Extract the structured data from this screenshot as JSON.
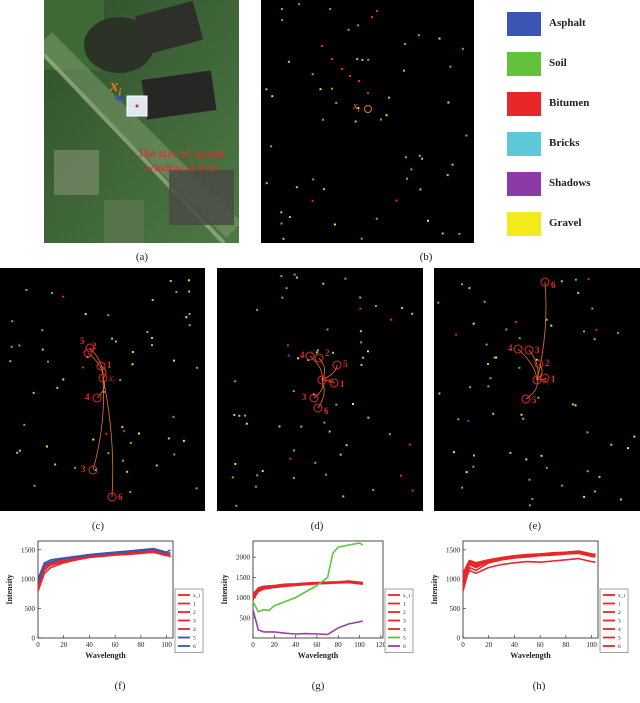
{
  "panel_labels": [
    "(a)",
    "(b)",
    "(c)",
    "(d)",
    "(e)",
    "(f)",
    "(g)",
    "(h)"
  ],
  "panel_a": {
    "target_label": "x",
    "target_sub": "i",
    "window_text_line1": "The size of spatial",
    "window_text_line2": "window is 9×9"
  },
  "legend": [
    {
      "label": "Asphalt",
      "color": "#3a55b4"
    },
    {
      "label": "Soil",
      "color": "#62c23c"
    },
    {
      "label": "Bitumen",
      "color": "#e8272a"
    },
    {
      "label": "Bricks",
      "color": "#5ec8d8"
    },
    {
      "label": "Shadows",
      "color": "#8b3aa6"
    },
    {
      "label": "Gravel",
      "color": "#f2ea1c"
    }
  ],
  "map_labels": {
    "b": {
      "target": "x",
      "sub": "i"
    },
    "c": {
      "target": "x",
      "sub": "i",
      "neighbors": [
        "2",
        "5",
        "1",
        "4",
        "3",
        "6"
      ]
    },
    "d": {
      "target": "x",
      "sub": "i",
      "neighbors": [
        "4",
        "2",
        "5",
        "1",
        "3",
        "6"
      ]
    },
    "e": {
      "target": "x",
      "sub": "i",
      "neighbors": [
        "4",
        "3",
        "2",
        "1",
        "5",
        "6"
      ]
    }
  },
  "chart_data": [
    {
      "type": "line",
      "panel": "(f)",
      "xlabel": "Wavelength",
      "ylabel": "Intensity",
      "xlim": [
        0,
        105
      ],
      "ylim": [
        0,
        1650
      ],
      "xticks": [
        0,
        20,
        40,
        60,
        80,
        100
      ],
      "yticks": [
        0,
        500,
        1000,
        1500
      ],
      "legend": [
        "x_i",
        "1",
        "2",
        "3",
        "4",
        "5",
        "6"
      ],
      "series": [
        {
          "name": "x_i",
          "color": "#e8272a",
          "x": [
            0,
            5,
            10,
            20,
            30,
            40,
            50,
            60,
            70,
            80,
            90,
            100,
            103
          ],
          "y": [
            900,
            1150,
            1250,
            1300,
            1350,
            1380,
            1400,
            1420,
            1430,
            1440,
            1460,
            1400,
            1420
          ]
        },
        {
          "name": "1",
          "color": "#e8272a",
          "x": [
            0,
            5,
            10,
            20,
            30,
            40,
            50,
            60,
            70,
            80,
            90,
            100,
            103
          ],
          "y": [
            800,
            1100,
            1200,
            1280,
            1330,
            1370,
            1390,
            1410,
            1420,
            1440,
            1470,
            1420,
            1380
          ]
        },
        {
          "name": "2",
          "color": "#e8272a",
          "x": [
            0,
            5,
            10,
            20,
            30,
            40,
            50,
            60,
            70,
            80,
            90,
            100,
            103
          ],
          "y": [
            950,
            1200,
            1270,
            1320,
            1350,
            1390,
            1410,
            1430,
            1440,
            1460,
            1480,
            1410,
            1400
          ]
        },
        {
          "name": "3",
          "color": "#e8272a",
          "x": [
            0,
            5,
            10,
            20,
            30,
            40,
            50,
            60,
            70,
            80,
            90,
            100,
            103
          ],
          "y": [
            1000,
            1230,
            1290,
            1330,
            1370,
            1400,
            1420,
            1440,
            1450,
            1470,
            1490,
            1430,
            1450
          ]
        },
        {
          "name": "4",
          "color": "#e8272a",
          "x": [
            0,
            5,
            10,
            20,
            30,
            40,
            50,
            60,
            70,
            80,
            90,
            100,
            103
          ],
          "y": [
            850,
            1180,
            1240,
            1300,
            1340,
            1380,
            1400,
            1420,
            1440,
            1450,
            1460,
            1410,
            1390
          ]
        },
        {
          "name": "5",
          "color": "#3a55b4",
          "x": [
            0,
            5,
            10,
            20,
            30,
            40,
            50,
            60,
            70,
            80,
            90,
            100,
            103
          ],
          "y": [
            1000,
            1280,
            1330,
            1360,
            1390,
            1420,
            1440,
            1460,
            1480,
            1500,
            1520,
            1460,
            1500
          ]
        },
        {
          "name": "6",
          "color": "#3a55b4",
          "x": [
            0,
            5,
            10,
            20,
            30,
            40,
            50,
            60,
            70,
            80,
            90,
            100,
            103
          ],
          "y": [
            950,
            1250,
            1300,
            1350,
            1380,
            1410,
            1430,
            1450,
            1470,
            1490,
            1510,
            1450,
            1440
          ]
        }
      ]
    },
    {
      "type": "line",
      "panel": "(g)",
      "xlabel": "Wavelength",
      "ylabel": "Intensity",
      "xlim": [
        0,
        122
      ],
      "ylim": [
        0,
        2400
      ],
      "xticks": [
        0,
        20,
        40,
        60,
        80,
        100,
        120
      ],
      "yticks": [
        500,
        1000,
        1500,
        2000
      ],
      "legend": [
        "x_i",
        "1",
        "2",
        "3",
        "4",
        "5",
        "6"
      ],
      "series": [
        {
          "name": "x_i",
          "color": "#e8272a",
          "x": [
            0,
            5,
            10,
            20,
            30,
            40,
            50,
            60,
            70,
            80,
            90,
            100,
            103
          ],
          "y": [
            1100,
            1200,
            1250,
            1280,
            1300,
            1320,
            1340,
            1350,
            1360,
            1370,
            1380,
            1350,
            1340
          ]
        },
        {
          "name": "1",
          "color": "#e8272a",
          "x": [
            0,
            5,
            10,
            20,
            30,
            40,
            50,
            60,
            70,
            80,
            90,
            100,
            103
          ],
          "y": [
            1000,
            1180,
            1230,
            1270,
            1300,
            1310,
            1330,
            1350,
            1360,
            1370,
            1390,
            1360,
            1350
          ]
        },
        {
          "name": "2",
          "color": "#e8272a",
          "x": [
            0,
            5,
            10,
            20,
            30,
            40,
            50,
            60,
            70,
            80,
            90,
            100,
            103
          ],
          "y": [
            1050,
            1220,
            1260,
            1290,
            1320,
            1330,
            1350,
            1360,
            1370,
            1380,
            1400,
            1370,
            1360
          ]
        },
        {
          "name": "3",
          "color": "#e8272a",
          "x": [
            0,
            5,
            10,
            20,
            30,
            40,
            50,
            60,
            70,
            80,
            90,
            100,
            103
          ],
          "y": [
            950,
            1150,
            1210,
            1250,
            1280,
            1300,
            1320,
            1340,
            1350,
            1360,
            1370,
            1340,
            1330
          ]
        },
        {
          "name": "4",
          "color": "#e8272a",
          "x": [
            0,
            5,
            10,
            20,
            30,
            40,
            50,
            60,
            70,
            80,
            90,
            100,
            103
          ],
          "y": [
            1080,
            1240,
            1280,
            1300,
            1330,
            1340,
            1360,
            1370,
            1380,
            1390,
            1410,
            1380,
            1370
          ]
        },
        {
          "name": "5",
          "color": "#62c23c",
          "x": [
            0,
            5,
            10,
            15,
            20,
            30,
            40,
            50,
            60,
            70,
            75,
            80,
            90,
            100,
            103
          ],
          "y": [
            900,
            650,
            700,
            680,
            800,
            900,
            1000,
            1150,
            1300,
            1500,
            2100,
            2250,
            2300,
            2350,
            2300
          ]
        },
        {
          "name": "6",
          "color": "#9b3fb0",
          "x": [
            0,
            5,
            10,
            20,
            30,
            40,
            50,
            60,
            70,
            80,
            90,
            100,
            103
          ],
          "y": [
            700,
            200,
            150,
            150,
            120,
            100,
            110,
            100,
            90,
            250,
            350,
            400,
            420
          ]
        }
      ]
    },
    {
      "type": "line",
      "panel": "(h)",
      "xlabel": "Wavelength",
      "ylabel": "Intensity",
      "xlim": [
        0,
        105
      ],
      "ylim": [
        0,
        1650
      ],
      "xticks": [
        0,
        20,
        40,
        60,
        80,
        100
      ],
      "yticks": [
        0,
        500,
        1000,
        1500
      ],
      "legend": [
        "x_i",
        "1",
        "2",
        "3",
        "4",
        "5",
        "6"
      ],
      "series": [
        {
          "name": "x_i",
          "color": "#e8272a",
          "x": [
            0,
            5,
            10,
            20,
            30,
            40,
            50,
            60,
            70,
            80,
            90,
            100,
            103
          ],
          "y": [
            900,
            1250,
            1200,
            1300,
            1350,
            1380,
            1400,
            1420,
            1430,
            1440,
            1450,
            1400,
            1420
          ]
        },
        {
          "name": "1",
          "color": "#e8272a",
          "x": [
            0,
            5,
            10,
            20,
            30,
            40,
            50,
            60,
            70,
            80,
            90,
            100,
            103
          ],
          "y": [
            1000,
            1300,
            1250,
            1320,
            1360,
            1390,
            1410,
            1420,
            1440,
            1450,
            1470,
            1420,
            1400
          ]
        },
        {
          "name": "2",
          "color": "#e8272a",
          "x": [
            0,
            5,
            10,
            20,
            30,
            40,
            50,
            60,
            70,
            80,
            90,
            100,
            103
          ],
          "y": [
            1100,
            1320,
            1280,
            1330,
            1370,
            1400,
            1420,
            1430,
            1450,
            1460,
            1480,
            1430,
            1410
          ]
        },
        {
          "name": "3",
          "color": "#e8272a",
          "x": [
            0,
            5,
            10,
            20,
            30,
            40,
            50,
            60,
            70,
            80,
            90,
            100,
            103
          ],
          "y": [
            800,
            1200,
            1150,
            1280,
            1330,
            1360,
            1380,
            1400,
            1410,
            1430,
            1440,
            1390,
            1380
          ]
        },
        {
          "name": "4",
          "color": "#e8272a",
          "x": [
            0,
            5,
            10,
            20,
            30,
            40,
            50,
            60,
            70,
            80,
            90,
            100,
            103
          ],
          "y": [
            950,
            1270,
            1220,
            1300,
            1340,
            1370,
            1390,
            1410,
            1420,
            1440,
            1460,
            1410,
            1400
          ]
        },
        {
          "name": "5",
          "color": "#e8272a",
          "x": [
            0,
            5,
            10,
            20,
            30,
            40,
            50,
            60,
            70,
            80,
            90,
            100,
            103
          ],
          "y": [
            1050,
            1280,
            1230,
            1310,
            1350,
            1380,
            1400,
            1410,
            1430,
            1450,
            1470,
            1420,
            1430
          ]
        },
        {
          "name": "6",
          "color": "#e8272a",
          "x": [
            0,
            5,
            10,
            20,
            30,
            40,
            50,
            60,
            70,
            80,
            90,
            100,
            103
          ],
          "y": [
            900,
            1150,
            1100,
            1200,
            1250,
            1280,
            1300,
            1290,
            1310,
            1330,
            1350,
            1300,
            1290
          ]
        }
      ]
    }
  ]
}
